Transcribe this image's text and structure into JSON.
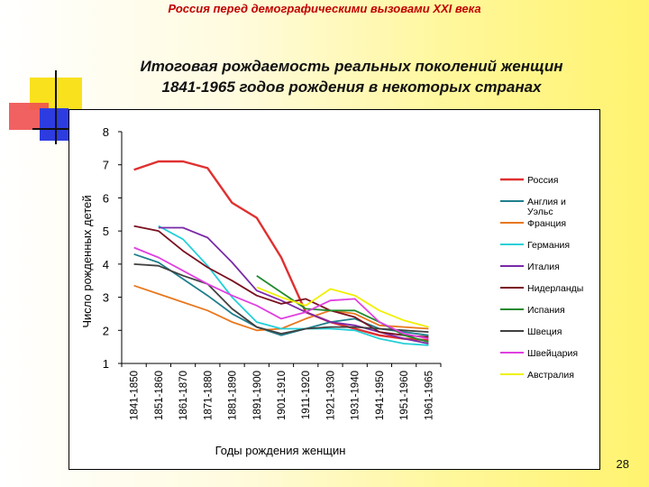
{
  "header": {
    "text": "Россия перед демографическими вызовами XXI века"
  },
  "title": {
    "line1": "Итоговая рождаемость реальных поколений женщин",
    "line2": "1841-1965 годов рождения в некоторых странах"
  },
  "page_number": "28",
  "chart_data": {
    "type": "line",
    "title": "",
    "xlabel": "Годы рождения женщин",
    "ylabel": "Число рожденных детей",
    "ylim": [
      1,
      8
    ],
    "yticks": [
      "1",
      "2",
      "3",
      "4",
      "5",
      "6",
      "7",
      "8"
    ],
    "categories": [
      "1841-1850",
      "1851-1860",
      "1861-1870",
      "1871-1880",
      "1881-1890",
      "1891-1900",
      "1901-1910",
      "1911-1920",
      "1921-1930",
      "1931-1940",
      "1941-1950",
      "1951-1960",
      "1961-1965"
    ],
    "legend_position": "right",
    "grid": false,
    "series": [
      {
        "name": "Россия",
        "color": "#e03030",
        "values": [
          6.85,
          7.1,
          7.1,
          6.9,
          5.85,
          5.4,
          4.2,
          2.55,
          2.25,
          2.05,
          1.85,
          1.75,
          1.7
        ]
      },
      {
        "name": "Англия и Уэльс",
        "color": "#1f7f8c",
        "values": [
          4.3,
          4.05,
          3.55,
          3.05,
          2.5,
          2.1,
          1.85,
          2.05,
          2.25,
          2.35,
          2.05,
          1.95,
          1.85
        ]
      },
      {
        "name": "Франция",
        "color": "#e8781e",
        "values": [
          3.35,
          3.1,
          2.85,
          2.6,
          2.25,
          2.0,
          2.05,
          2.35,
          2.6,
          2.5,
          2.15,
          2.1,
          2.05
        ]
      },
      {
        "name": "Германия",
        "color": "#22d0d8",
        "values": [
          null,
          5.15,
          4.75,
          3.95,
          3.0,
          2.25,
          2.05,
          2.05,
          2.05,
          2.0,
          1.75,
          1.6,
          1.55
        ]
      },
      {
        "name": "Италия",
        "color": "#7a2aa8",
        "values": [
          null,
          5.1,
          5.1,
          4.8,
          4.05,
          3.2,
          2.9,
          2.55,
          2.25,
          2.15,
          1.95,
          1.75,
          1.6
        ]
      },
      {
        "name": "Нидерланды",
        "color": "#7a1020",
        "values": [
          5.15,
          5.0,
          4.4,
          3.9,
          3.5,
          3.05,
          2.8,
          2.95,
          2.6,
          2.4,
          1.95,
          1.85,
          1.8
        ]
      },
      {
        "name": "Испания",
        "color": "#208a30",
        "values": [
          null,
          null,
          null,
          null,
          null,
          3.65,
          3.15,
          2.65,
          2.6,
          2.6,
          2.25,
          1.85,
          1.65
        ]
      },
      {
        "name": "Швеция",
        "color": "#404040",
        "values": [
          4.0,
          3.95,
          3.65,
          3.4,
          2.65,
          2.1,
          1.9,
          2.05,
          2.1,
          2.1,
          2.05,
          2.0,
          1.95
        ]
      },
      {
        "name": "Швейцария",
        "color": "#e040e0",
        "values": [
          4.5,
          4.2,
          3.8,
          3.4,
          3.05,
          2.75,
          2.35,
          2.55,
          2.9,
          2.95,
          2.25,
          1.9,
          1.75
        ]
      },
      {
        "name": "Австралия",
        "color": "#f0f000",
        "values": [
          null,
          null,
          null,
          null,
          null,
          3.3,
          3.0,
          2.75,
          3.25,
          3.05,
          2.6,
          2.3,
          2.1
        ]
      }
    ]
  }
}
